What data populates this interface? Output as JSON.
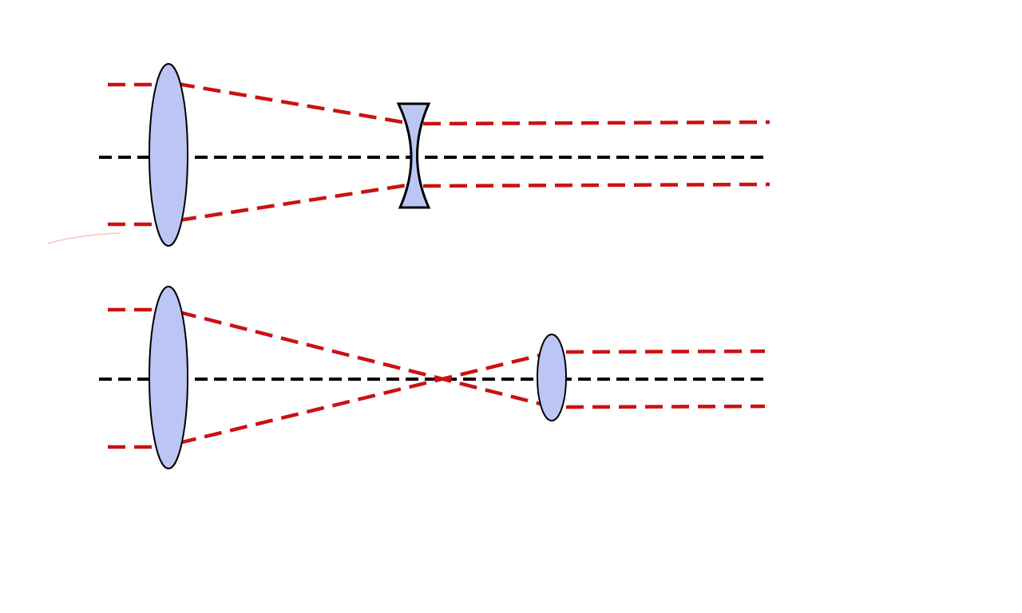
{
  "colors": {
    "background": "#ffffff",
    "ray": "#cc1111",
    "axis": "#000000",
    "lens_fill": "#bcc6f5",
    "lens_stroke": "#000000"
  },
  "diagrams": [
    {
      "description_kind": "galilean-telescope",
      "objective_lens": "convex",
      "eyepiece_lens": "concave"
    },
    {
      "description_kind": "keplerian-telescope",
      "objective_lens": "convex",
      "eyepiece_lens": "convex"
    }
  ]
}
